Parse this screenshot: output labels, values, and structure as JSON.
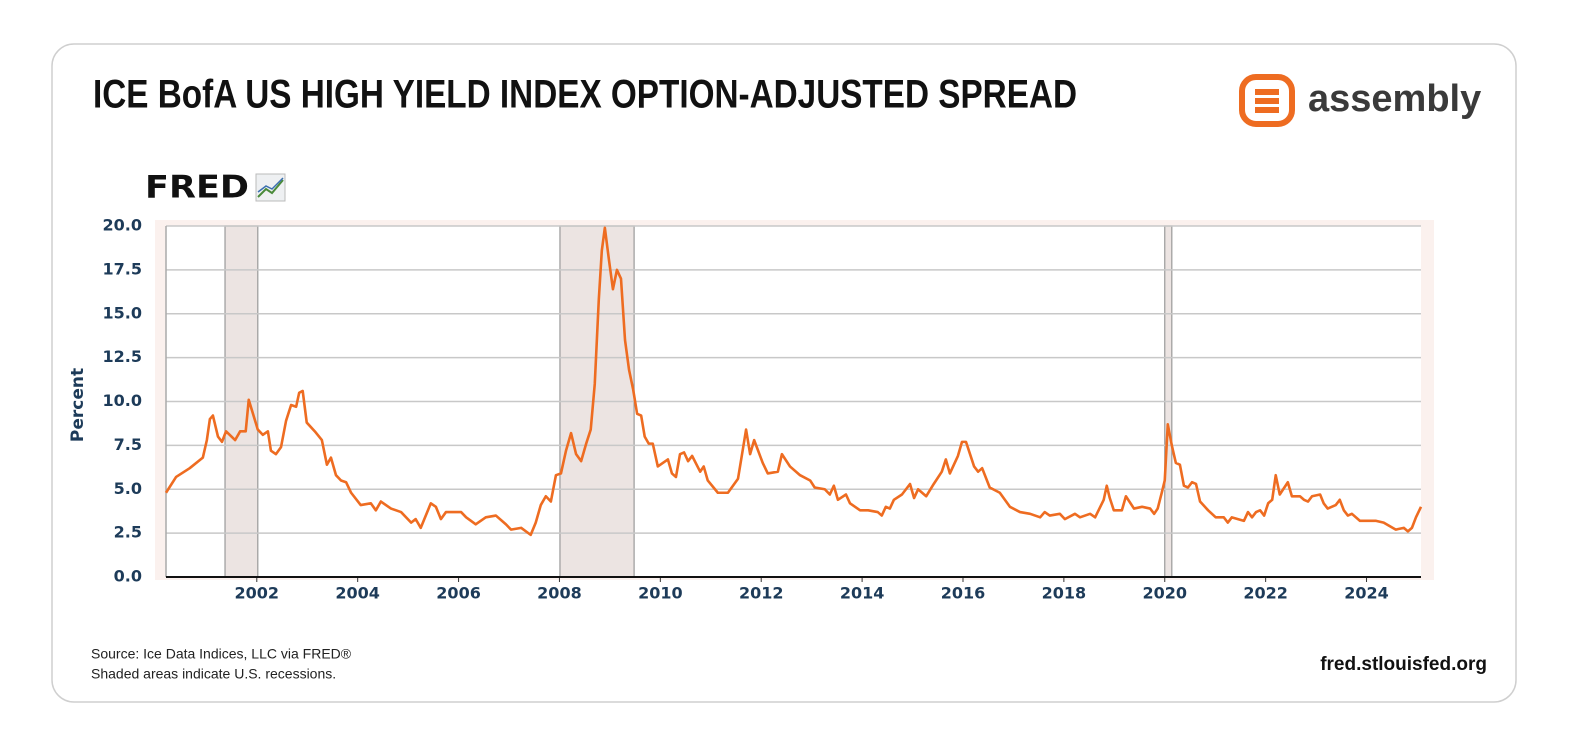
{
  "header": {
    "title": "ICE BofA US HIGH YIELD INDEX OPTION-ADJUSTED SPREAD",
    "logo_text": "assembly"
  },
  "chart_data": {
    "type": "line",
    "brand": "FRED",
    "ylabel": "Percent",
    "color": "#ee6c21",
    "grid": true,
    "xlim": [
      2000.2,
      2025.08
    ],
    "xticks": [
      2002,
      2004,
      2006,
      2008,
      2010,
      2012,
      2014,
      2016,
      2018,
      2020,
      2022,
      2024
    ],
    "ylim": [
      0,
      20
    ],
    "yticks": [
      {
        "value": 0,
        "label": "0.0"
      },
      2.5,
      {
        "value": 5,
        "label": "5.0"
      },
      7.5,
      {
        "value": 10,
        "label": "10.0"
      },
      12.5,
      {
        "value": 15,
        "label": "15.0"
      },
      17.5,
      {
        "value": 20,
        "label": "20.0"
      }
    ],
    "recessions": [
      [
        2001.37,
        2002.02
      ],
      [
        2008.01,
        2009.48
      ],
      [
        2020.0,
        2020.14
      ]
    ],
    "x": [
      2000.2,
      2000.4,
      2000.67,
      2000.93,
      2001.01,
      2001.07,
      2001.13,
      2001.23,
      2001.31,
      2001.39,
      2001.57,
      2001.67,
      2001.78,
      2001.84,
      2002.02,
      2002.12,
      2002.22,
      2002.28,
      2002.38,
      2002.48,
      2002.58,
      2002.68,
      2002.78,
      2002.84,
      2002.91,
      2002.99,
      2003.15,
      2003.29,
      2003.39,
      2003.47,
      2003.57,
      2003.67,
      2003.77,
      2003.87,
      2004.06,
      2004.26,
      2004.36,
      2004.46,
      2004.66,
      2004.86,
      2005.06,
      2005.15,
      2005.25,
      2005.45,
      2005.55,
      2005.65,
      2005.75,
      2006.05,
      2006.15,
      2006.34,
      2006.54,
      2006.74,
      2006.94,
      2007.04,
      2007.24,
      2007.43,
      2007.53,
      2007.63,
      2007.73,
      2007.83,
      2007.93,
      2008.03,
      2008.13,
      2008.23,
      2008.33,
      2008.43,
      2008.53,
      2008.62,
      2008.7,
      2008.78,
      2008.84,
      2008.9,
      2008.98,
      2009.06,
      2009.14,
      2009.22,
      2009.3,
      2009.38,
      2009.46,
      2009.54,
      2009.62,
      2009.69,
      2009.77,
      2009.85,
      2009.95,
      2010.15,
      2010.23,
      2010.31,
      2010.39,
      2010.47,
      2010.55,
      2010.63,
      2010.79,
      2010.86,
      2010.94,
      2011.14,
      2011.34,
      2011.54,
      2011.62,
      2011.7,
      2011.78,
      2011.86,
      2012.03,
      2012.13,
      2012.33,
      2012.41,
      2012.57,
      2012.77,
      2012.97,
      2013.06,
      2013.26,
      2013.36,
      2013.44,
      2013.52,
      2013.68,
      2013.76,
      2013.96,
      2014.12,
      2014.31,
      2014.39,
      2014.47,
      2014.55,
      2014.63,
      2014.79,
      2014.95,
      2015.03,
      2015.11,
      2015.27,
      2015.42,
      2015.58,
      2015.66,
      2015.74,
      2015.9,
      2015.98,
      2016.06,
      2016.22,
      2016.3,
      2016.38,
      2016.53,
      2016.73,
      2016.93,
      2017.13,
      2017.33,
      2017.53,
      2017.62,
      2017.72,
      2017.92,
      2018.02,
      2018.22,
      2018.32,
      2018.52,
      2018.62,
      2018.79,
      2018.85,
      2018.91,
      2018.99,
      2019.15,
      2019.23,
      2019.39,
      2019.55,
      2019.71,
      2019.79,
      2019.86,
      2019.94,
      2020.0,
      2020.06,
      2020.14,
      2020.22,
      2020.3,
      2020.38,
      2020.46,
      2020.54,
      2020.62,
      2020.7,
      2020.86,
      2021.01,
      2021.17,
      2021.25,
      2021.33,
      2021.57,
      2021.65,
      2021.73,
      2021.81,
      2021.89,
      2021.97,
      2022.05,
      2022.13,
      2022.2,
      2022.28,
      2022.44,
      2022.52,
      2022.68,
      2022.76,
      2022.84,
      2022.92,
      2023.08,
      2023.15,
      2023.23,
      2023.39,
      2023.47,
      2023.55,
      2023.63,
      2023.71,
      2023.87,
      2024.19,
      2024.34,
      2024.58,
      2024.74,
      2024.82,
      2024.9,
      2024.98,
      2025.08
    ],
    "values": [
      4.8,
      5.7,
      6.2,
      6.8,
      7.8,
      9.0,
      9.2,
      8.0,
      7.7,
      8.3,
      7.8,
      8.3,
      8.3,
      10.1,
      8.4,
      8.1,
      8.3,
      7.2,
      7.0,
      7.4,
      8.9,
      9.8,
      9.7,
      10.5,
      10.6,
      8.8,
      8.3,
      7.8,
      6.4,
      6.8,
      5.8,
      5.5,
      5.4,
      4.8,
      4.1,
      4.2,
      3.8,
      4.3,
      3.9,
      3.7,
      3.1,
      3.3,
      2.8,
      4.2,
      4.0,
      3.3,
      3.7,
      3.7,
      3.4,
      3.0,
      3.4,
      3.5,
      3.0,
      2.7,
      2.8,
      2.4,
      3.1,
      4.1,
      4.6,
      4.3,
      5.8,
      5.9,
      7.2,
      8.2,
      7.0,
      6.6,
      7.6,
      8.4,
      11.0,
      15.8,
      18.6,
      19.9,
      18.1,
      16.4,
      17.5,
      17.0,
      13.5,
      11.8,
      10.7,
      9.3,
      9.2,
      8.0,
      7.6,
      7.6,
      6.3,
      6.7,
      5.9,
      5.7,
      7.0,
      7.1,
      6.6,
      6.9,
      6.0,
      6.3,
      5.5,
      4.8,
      4.8,
      5.6,
      7.0,
      8.4,
      7.0,
      7.8,
      6.5,
      5.9,
      6.0,
      7.0,
      6.3,
      5.8,
      5.5,
      5.1,
      5.0,
      4.7,
      5.2,
      4.4,
      4.7,
      4.2,
      3.8,
      3.8,
      3.7,
      3.5,
      4.0,
      3.9,
      4.4,
      4.7,
      5.3,
      4.5,
      5.0,
      4.6,
      5.3,
      6.0,
      6.7,
      5.9,
      6.9,
      7.7,
      7.7,
      6.3,
      6.0,
      6.2,
      5.1,
      4.8,
      4.0,
      3.7,
      3.6,
      3.4,
      3.7,
      3.5,
      3.6,
      3.3,
      3.6,
      3.4,
      3.6,
      3.4,
      4.4,
      5.2,
      4.5,
      3.8,
      3.8,
      4.6,
      3.9,
      4.0,
      3.9,
      3.6,
      3.9,
      4.8,
      5.5,
      8.7,
      7.5,
      6.5,
      6.4,
      5.2,
      5.1,
      5.4,
      5.3,
      4.3,
      3.8,
      3.4,
      3.4,
      3.1,
      3.4,
      3.2,
      3.7,
      3.4,
      3.7,
      3.8,
      3.5,
      4.2,
      4.4,
      5.8,
      4.7,
      5.4,
      4.6,
      4.6,
      4.4,
      4.3,
      4.6,
      4.7,
      4.2,
      3.9,
      4.1,
      4.4,
      3.8,
      3.5,
      3.6,
      3.2,
      3.2,
      3.1,
      2.7,
      2.8,
      2.6,
      2.8,
      3.4,
      4.0
    ]
  },
  "footer": {
    "source": "Source: Ice Data Indices, LLC via FRED®",
    "note": "Shaded areas indicate U.S. recessions.",
    "site": "fred.stlouisfed.org"
  }
}
